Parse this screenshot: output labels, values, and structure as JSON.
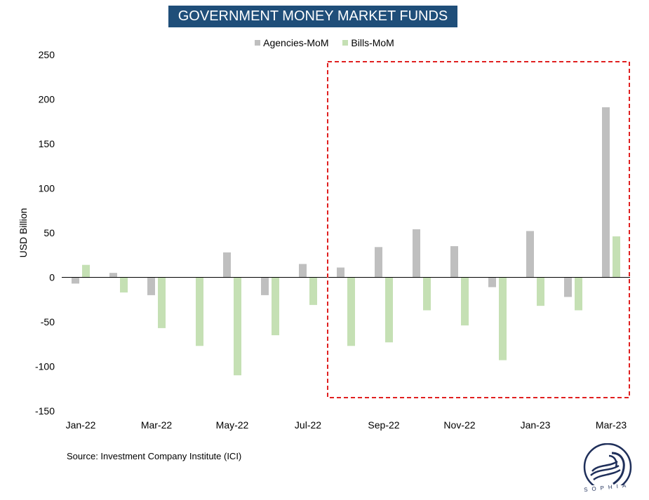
{
  "chart_data": {
    "type": "bar",
    "title": "GOVERNMENT MONEY MARKET FUNDS",
    "ylabel": "USD Billion",
    "ylim": [
      -150,
      250
    ],
    "yticks": [
      -150,
      -100,
      -50,
      0,
      50,
      100,
      150,
      200,
      250
    ],
    "categories": [
      "Jan-22",
      "Feb-22",
      "Mar-22",
      "Apr-22",
      "May-22",
      "Jun-22",
      "Jul-22",
      "Aug-22",
      "Sep-22",
      "Oct-22",
      "Nov-22",
      "Dec-22",
      "Jan-23",
      "Feb-23",
      "Mar-23"
    ],
    "xtick_labels": [
      "Jan-22",
      "Mar-22",
      "May-22",
      "Jul-22",
      "Sep-22",
      "Nov-22",
      "Jan-23",
      "Mar-23"
    ],
    "legend_position": "top-center",
    "series": [
      {
        "name": "Agencies-MoM",
        "color": "#bfbfbf",
        "values": [
          -7,
          5,
          -20,
          0,
          28,
          -20,
          15,
          11,
          34,
          54,
          35,
          -11,
          52,
          -22,
          191
        ]
      },
      {
        "name": "Bills-MoM",
        "color": "#c5e0b4",
        "values": [
          14,
          -17,
          -57,
          -77,
          -110,
          -65,
          -31,
          -77,
          -73,
          -37,
          -54,
          -93,
          -32,
          -37,
          46
        ]
      }
    ],
    "highlight_box": {
      "from": "Aug-22",
      "to": "Mar-23",
      "color": "#e02020"
    }
  },
  "source": "Source: Investment Company Institute (ICI)",
  "logo": {
    "icon": "sophia-logo-icon",
    "letters": "SOPHIA"
  }
}
